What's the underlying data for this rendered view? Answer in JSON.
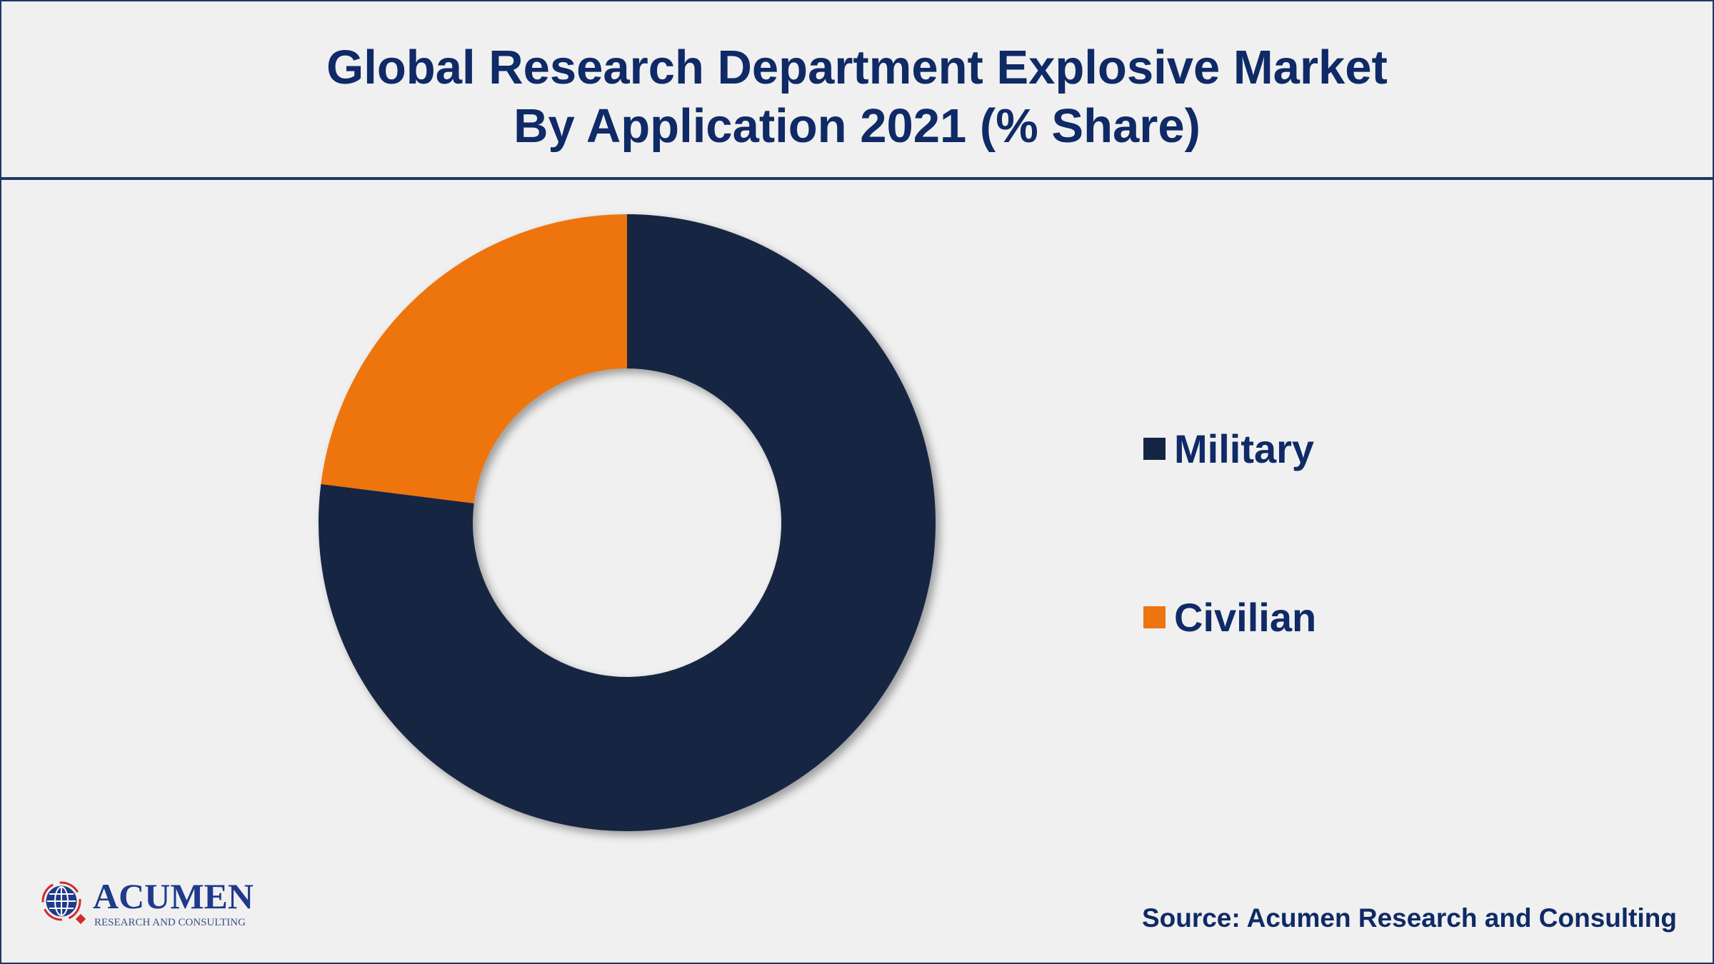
{
  "title_line1": "Global Research Department Explosive Market",
  "title_line2": "By Application 2021 (% Share)",
  "source": "Source: Acumen Research and Consulting",
  "logo": {
    "name": "ACUMEN",
    "tagline": "RESEARCH AND CONSULTING"
  },
  "colors": {
    "military": "#132542",
    "civilian": "#ee7410",
    "text": "#0f2a66"
  },
  "chart_data": {
    "type": "pie",
    "variant": "donut",
    "title": "Global Research Department Explosive Market By Application 2021 (% Share)",
    "categories": [
      "Military",
      "Civilian"
    ],
    "values": [
      77,
      23
    ],
    "unit": "%",
    "legend_placement": "right"
  },
  "legend": [
    {
      "label": "Military",
      "color": "#132542"
    },
    {
      "label": "Civilian",
      "color": "#ee7410"
    }
  ]
}
